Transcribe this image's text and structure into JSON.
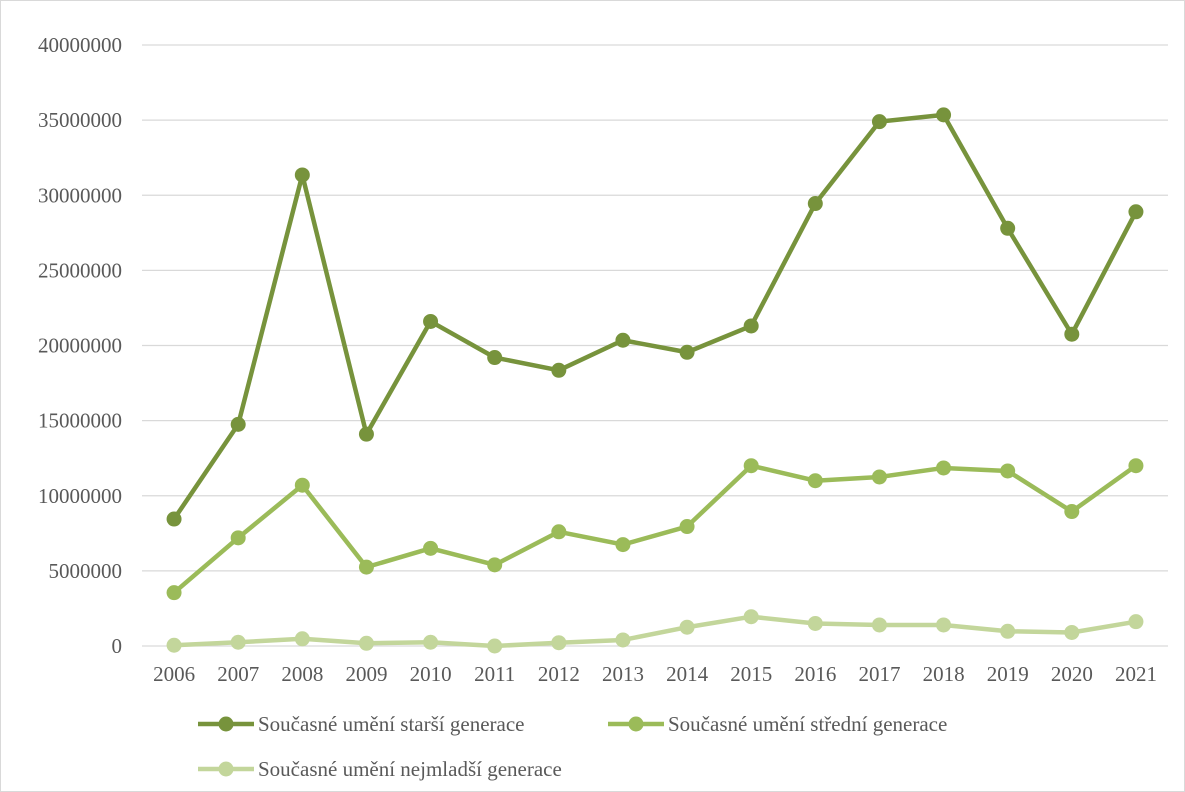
{
  "chart_data": {
    "type": "line",
    "title": "",
    "xlabel": "",
    "ylabel": "",
    "x": [
      "2006",
      "2007",
      "2008",
      "2009",
      "2010",
      "2011",
      "2012",
      "2013",
      "2014",
      "2015",
      "2016",
      "2017",
      "2018",
      "2019",
      "2020",
      "2021"
    ],
    "ylim": [
      0,
      40000000
    ],
    "yticks": [
      "0",
      "5000000",
      "10000000",
      "15000000",
      "20000000",
      "25000000",
      "30000000",
      "35000000",
      "40000000"
    ],
    "grid": true,
    "legend_position": "bottom",
    "series": [
      {
        "name": "Současné umění starší generace",
        "color": "#77933c",
        "values": [
          8450000,
          14750000,
          31350000,
          14100000,
          21600000,
          19200000,
          18350000,
          20350000,
          19550000,
          21300000,
          29450000,
          34900000,
          35350000,
          27800000,
          20750000,
          28900000
        ]
      },
      {
        "name": "Současné umění střední generace",
        "color": "#9bbb59",
        "values": [
          3550000,
          7200000,
          10700000,
          5250000,
          6500000,
          5400000,
          7600000,
          6750000,
          7950000,
          12000000,
          11000000,
          11250000,
          11850000,
          11650000,
          8950000,
          12000000
        ]
      },
      {
        "name": "Současné umění nejmladší generace",
        "color": "#c3d69b",
        "values": [
          50000,
          250000,
          480000,
          180000,
          250000,
          0,
          220000,
          400000,
          1250000,
          1950000,
          1500000,
          1400000,
          1400000,
          980000,
          900000,
          1620000
        ]
      }
    ]
  }
}
